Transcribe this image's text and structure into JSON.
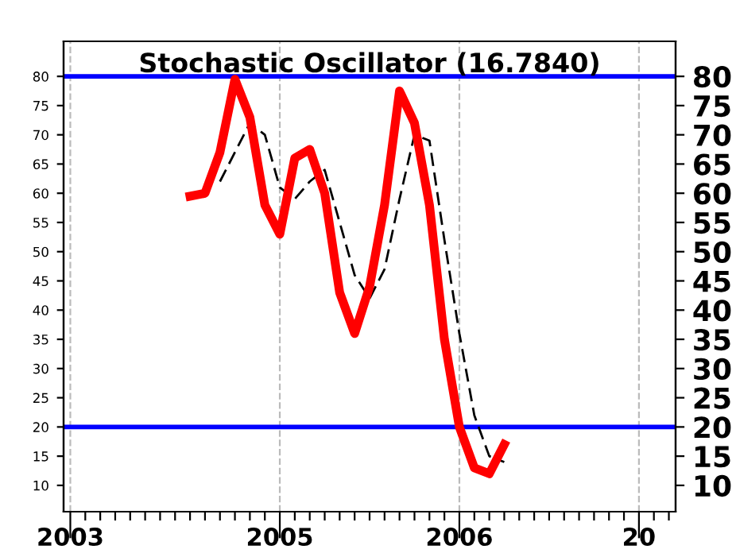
{
  "chart_data": {
    "type": "line",
    "title": "Stochastic Oscillator (16.7840)",
    "categories": [
      "2003",
      null,
      null,
      null,
      null,
      null,
      null,
      null,
      null,
      null,
      null,
      null,
      null,
      null,
      "2005",
      null,
      null,
      null,
      null,
      null,
      null,
      null,
      null,
      null,
      null,
      null,
      "2006",
      null,
      null,
      null,
      null,
      null,
      null,
      null,
      null,
      null,
      null,
      null,
      "20",
      null,
      null
    ],
    "series": [
      {
        "color": "#ff0000",
        "line_style": "solid",
        "values": [
          null,
          null,
          null,
          null,
          null,
          null,
          null,
          null,
          59.5,
          60,
          67,
          79.5,
          73,
          58,
          53,
          66,
          67.5,
          60,
          43,
          36,
          44,
          58,
          77.5,
          72,
          58,
          35,
          20,
          13,
          12,
          17,
          null,
          null,
          null,
          null,
          null,
          null,
          null,
          null,
          null,
          null,
          null
        ]
      },
      {
        "color": "#000000",
        "line_style": "dashed",
        "values": [
          null,
          null,
          null,
          null,
          null,
          null,
          null,
          null,
          null,
          null,
          62,
          67,
          72,
          70,
          61,
          59,
          62,
          64,
          55,
          46,
          42,
          47,
          59,
          70,
          69,
          52,
          36,
          22,
          15,
          14,
          null,
          null,
          null,
          null,
          null,
          null,
          null,
          null,
          null,
          null,
          null
        ]
      }
    ],
    "ylim": [
      5.5,
      86
    ],
    "yticks": [
      10,
      15,
      20,
      25,
      30,
      35,
      40,
      45,
      50,
      55,
      60,
      65,
      70,
      75,
      80
    ],
    "y2lim": [
      5.5,
      86
    ],
    "y2ticks": [
      10,
      15,
      20,
      25,
      30,
      35,
      40,
      45,
      50,
      55,
      60,
      65,
      70,
      75,
      80
    ],
    "ref_lines": [
      {
        "axis": "y",
        "value": 80,
        "color": "#0000ff"
      },
      {
        "axis": "y",
        "value": 20,
        "color": "#0000ff"
      }
    ],
    "grid": "x",
    "marker": "none"
  }
}
